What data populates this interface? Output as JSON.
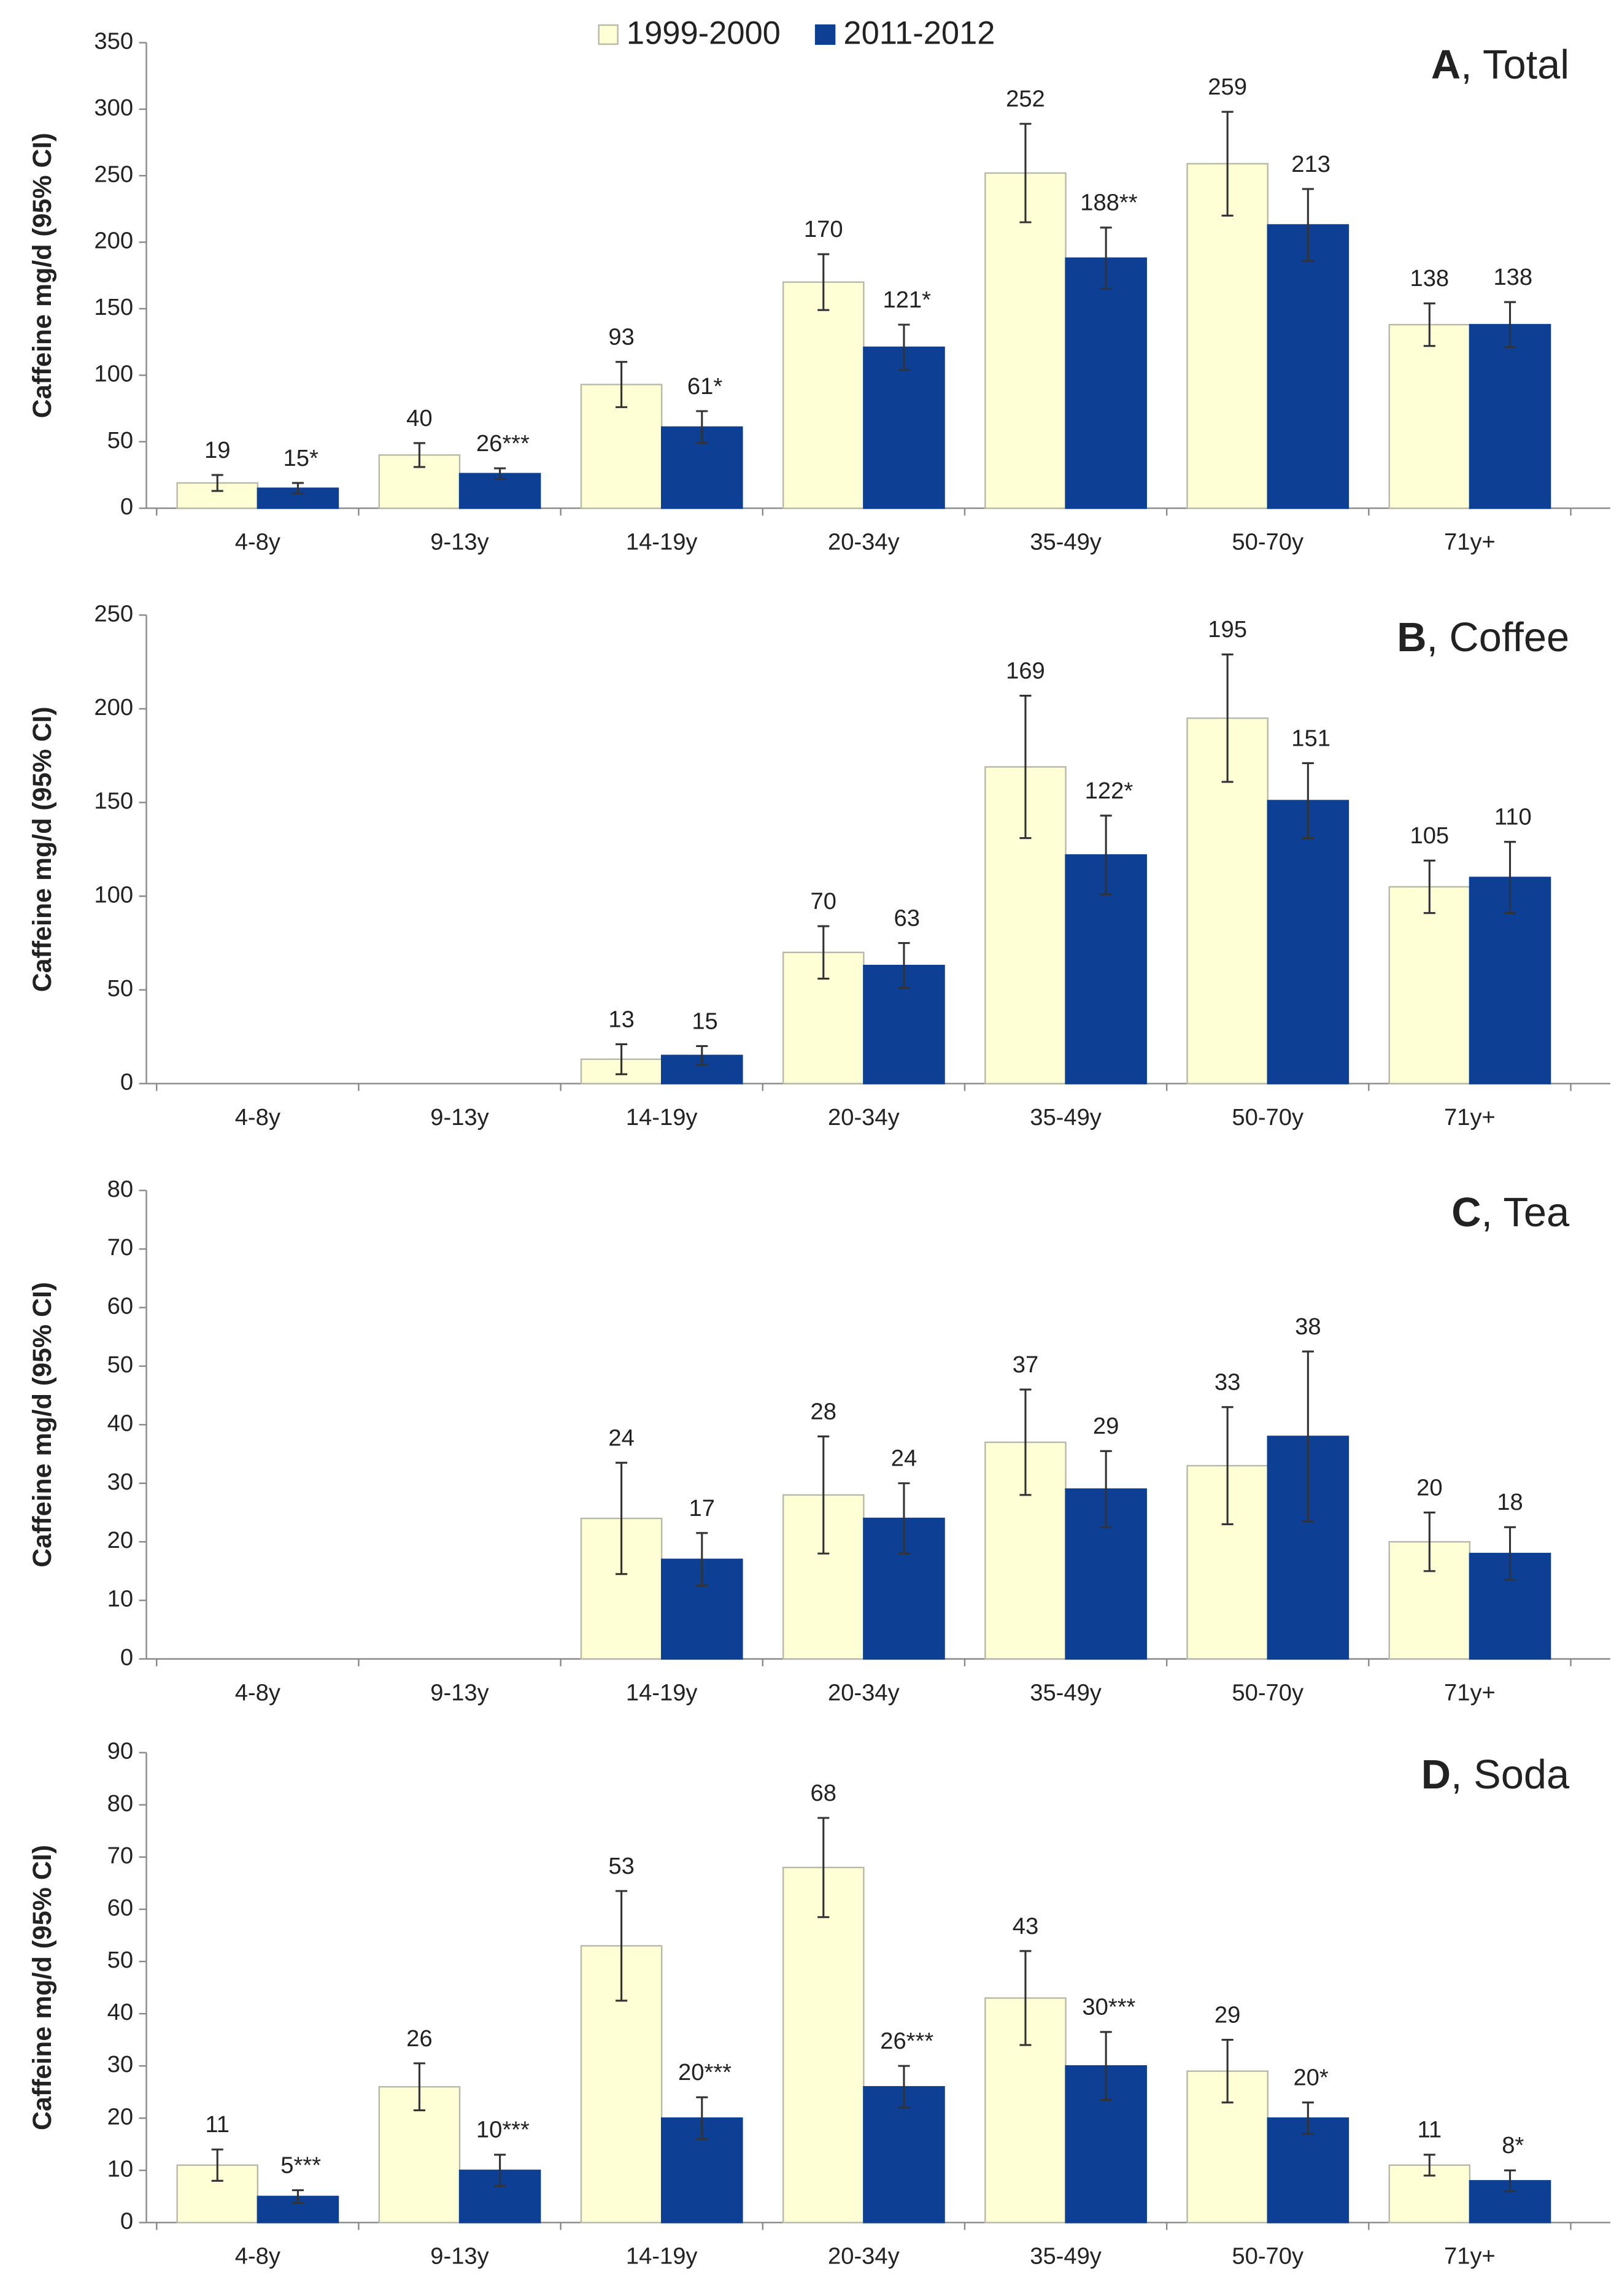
{
  "chart_data": [
    {
      "type": "bar",
      "title": "A, Total",
      "ylabel": "Caffeine mg/d (95% CI)",
      "legend": "top",
      "categories": [
        "4-8y",
        "9-13y",
        "14-19y",
        "20-34y",
        "35-49y",
        "50-70y",
        "71y+"
      ],
      "series": [
        {
          "name": "1999-2000",
          "color": "#ffffd6",
          "values": [
            19,
            40,
            93,
            170,
            252,
            259,
            138
          ],
          "errors": [
            6,
            9,
            17,
            21,
            37,
            39,
            16
          ]
        },
        {
          "name": "2011-2012",
          "color": "#0d3f94",
          "values": [
            15,
            26,
            61,
            121,
            188,
            213,
            138
          ],
          "errors": [
            4,
            4,
            12,
            17,
            23,
            27,
            17
          ],
          "value_labels": [
            "15*",
            "26***",
            "61*",
            "121*",
            "188**",
            "213",
            "138"
          ]
        }
      ],
      "ylim": [
        0,
        350
      ],
      "yticks": [
        0,
        50,
        100,
        150,
        200,
        250,
        300,
        350
      ]
    },
    {
      "type": "bar",
      "title": "B, Coffee",
      "ylabel": "Caffeine mg/d (95% CI)",
      "categories": [
        "4-8y",
        "9-13y",
        "14-19y",
        "20-34y",
        "35-49y",
        "50-70y",
        "71y+"
      ],
      "series": [
        {
          "color": "#ffffd6",
          "values": [
            null,
            null,
            13,
            70,
            169,
            195,
            105
          ],
          "errors": [
            null,
            null,
            8,
            14,
            38,
            34,
            14
          ]
        },
        {
          "color": "#0d3f94",
          "values": [
            null,
            null,
            15,
            63,
            122,
            151,
            110
          ],
          "errors": [
            null,
            null,
            5,
            12,
            21,
            20,
            19
          ],
          "value_labels": [
            null,
            null,
            "15",
            "63",
            "122*",
            "151",
            "110"
          ]
        }
      ],
      "ylim": [
        0,
        250
      ],
      "yticks": [
        0,
        50,
        100,
        150,
        200,
        250
      ]
    },
    {
      "type": "bar",
      "title": "C, Tea",
      "ylabel": "Caffeine mg/d (95% CI)",
      "categories": [
        "4-8y",
        "9-13y",
        "14-19y",
        "20-34y",
        "35-49y",
        "50-70y",
        "71y+"
      ],
      "series": [
        {
          "color": "#ffffd6",
          "values": [
            null,
            null,
            24,
            28,
            37,
            33,
            20
          ],
          "errors": [
            null,
            null,
            9.5,
            10,
            9,
            10,
            5
          ]
        },
        {
          "color": "#0d3f94",
          "values": [
            null,
            null,
            17,
            24,
            29,
            38,
            18
          ],
          "errors": [
            null,
            null,
            4.5,
            6,
            6.5,
            14.5,
            4.5
          ]
        }
      ],
      "ylim": [
        0,
        80
      ],
      "yticks": [
        0,
        10,
        20,
        30,
        40,
        50,
        60,
        70,
        80
      ]
    },
    {
      "type": "bar",
      "title": "D, Soda",
      "ylabel": "Caffeine mg/d (95% CI)",
      "categories": [
        "4-8y",
        "9-13y",
        "14-19y",
        "20-34y",
        "35-49y",
        "50-70y",
        "71y+"
      ],
      "series": [
        {
          "color": "#ffffd6",
          "values": [
            11,
            26,
            53,
            68,
            43,
            29,
            11
          ],
          "errors": [
            3,
            4.5,
            10.5,
            9.5,
            9,
            6,
            2
          ]
        },
        {
          "color": "#0d3f94",
          "values": [
            5,
            10,
            20,
            26,
            30,
            20,
            8
          ],
          "errors": [
            1.2,
            3,
            4,
            4,
            6.5,
            3,
            2
          ],
          "value_labels": [
            "5***",
            "10***",
            "20***",
            "26***",
            "30***",
            "20*",
            "8*"
          ]
        }
      ],
      "ylim": [
        0,
        90
      ],
      "yticks": [
        0,
        10,
        20,
        30,
        40,
        50,
        60,
        70,
        80,
        90
      ]
    }
  ]
}
